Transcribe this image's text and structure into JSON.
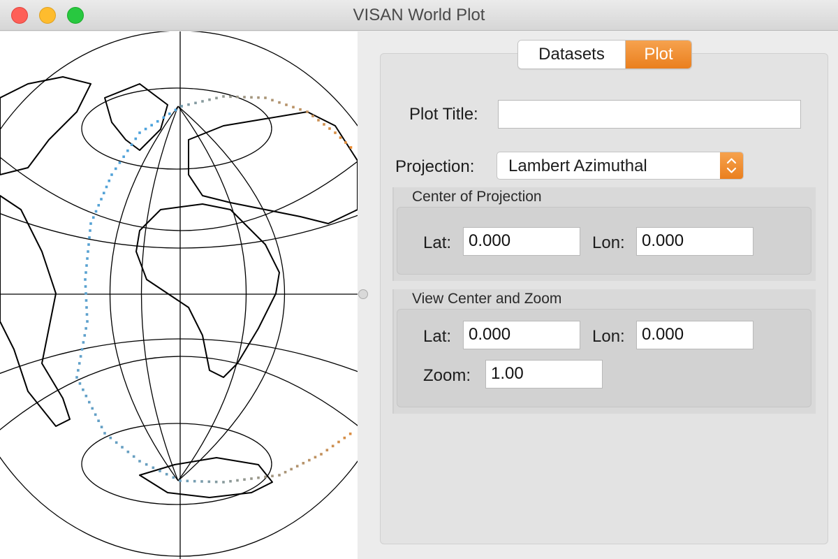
{
  "window": {
    "title": "VISAN World Plot"
  },
  "tabs": [
    {
      "label": "Datasets",
      "selected": false
    },
    {
      "label": "Plot",
      "selected": true
    }
  ],
  "plot_title": {
    "label": "Plot Title:",
    "value": ""
  },
  "projection": {
    "label": "Projection:",
    "value": "Lambert Azimuthal"
  },
  "center_of_projection": {
    "title": "Center of Projection",
    "lat_label": "Lat:",
    "lat_value": "0.000",
    "lon_label": "Lon:",
    "lon_value": "0.000"
  },
  "view_center_zoom": {
    "title": "View Center and Zoom",
    "lat_label": "Lat:",
    "lat_value": "0.000",
    "lon_label": "Lon:",
    "lon_value": "0.000",
    "zoom_label": "Zoom:",
    "zoom_value": "1.00"
  },
  "colors": {
    "accent": "#ee8a2c",
    "track_start": "#4aa3e0",
    "track_end": "#f08a2a"
  }
}
